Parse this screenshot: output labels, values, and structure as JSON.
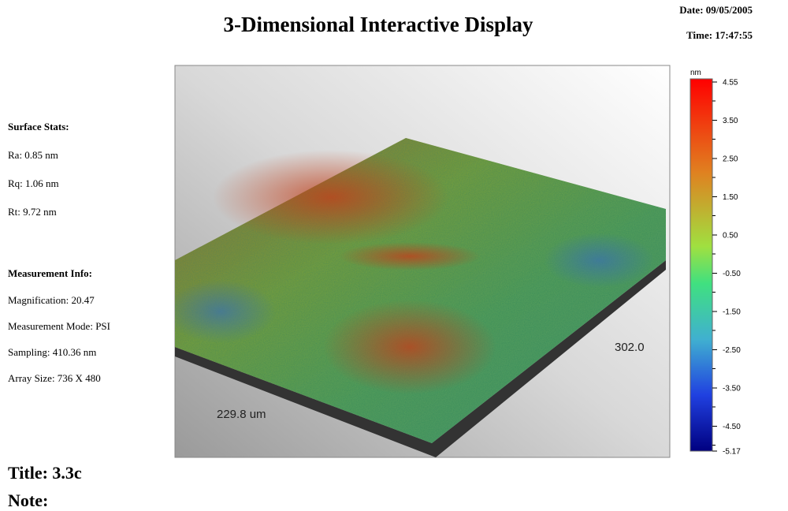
{
  "header": {
    "title": "3-Dimensional Interactive Display",
    "date": "Date: 09/05/2005",
    "time": "Time: 17:47:55"
  },
  "surface_stats": {
    "heading": "Surface Stats:",
    "items": [
      "Ra: 0.85 nm",
      "Rq: 1.06 nm",
      "Rt: 9.72 nm"
    ]
  },
  "measurement_info": {
    "heading": "Measurement Info:",
    "items": [
      "Magnification: 20.47",
      "Measurement Mode: PSI",
      "Sampling: 410.36 nm",
      "Array Size: 736 X 480"
    ]
  },
  "plot": {
    "x_label": "229.8 um",
    "y_label": "302.0"
  },
  "color_bar": {
    "unit": "nm",
    "labels": [
      "4.55",
      "3.50",
      "2.50",
      "1.50",
      "0.50",
      "-0.50",
      "-1.50",
      "-2.50",
      "-3.50",
      "-4.50",
      "-5.17"
    ]
  },
  "footer": {
    "title": "Title: 3.3c",
    "note": "Note:"
  }
}
